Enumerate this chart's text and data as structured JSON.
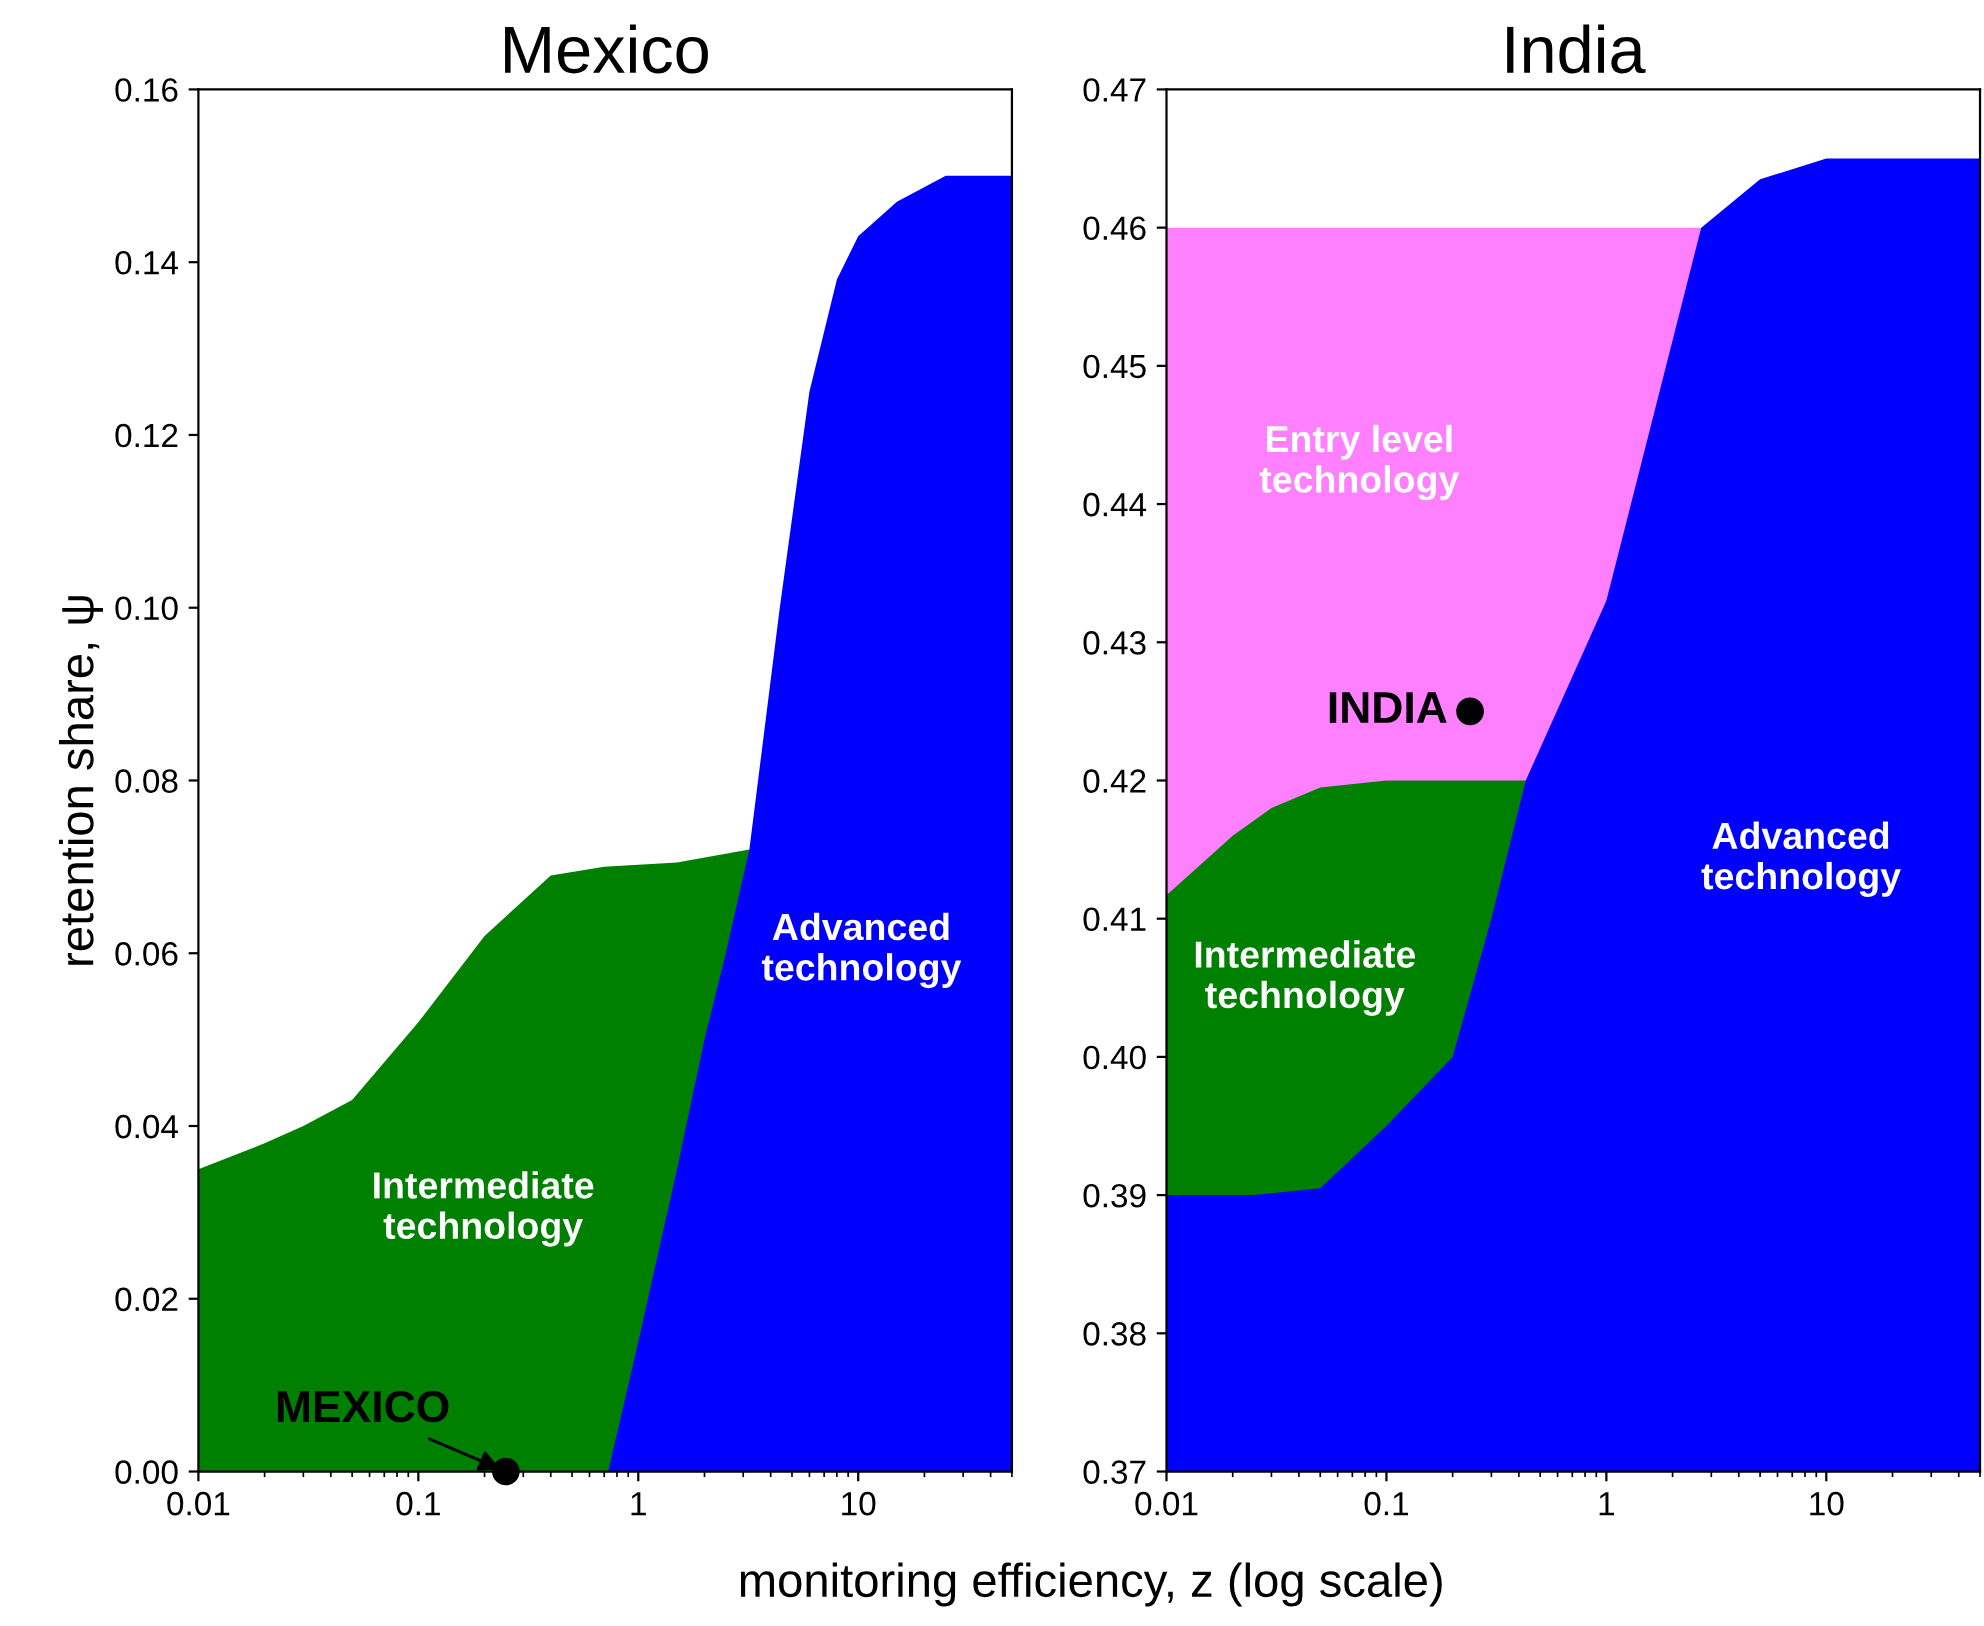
{
  "chart_data": [
    {
      "type": "area",
      "title": "Mexico",
      "xlabel": "monitoring efficiency, z (log scale)",
      "ylabel": "retention share, ψ",
      "log": "x",
      "xlim": [
        0.01,
        50
      ],
      "xticks": [
        0.01,
        0.1,
        1,
        10
      ],
      "ylim": [
        0,
        0.16
      ],
      "yticks": [
        {
          "value": 0,
          "label": "0.00"
        },
        {
          "value": 0.02,
          "label": "0.02"
        },
        {
          "value": 0.04,
          "label": "0.04"
        },
        {
          "value": 0.06,
          "label": "0.06"
        },
        {
          "value": 0.08,
          "label": "0.08"
        },
        {
          "value": 0.1,
          "label": "0.10"
        },
        {
          "value": 0.12,
          "label": "0.12"
        },
        {
          "value": 0.14,
          "label": "0.14"
        },
        {
          "value": 0.16,
          "label": "0.16"
        }
      ],
      "grid": false,
      "legend": false,
      "series": [
        {
          "color": "#008000",
          "x": [
            0.01,
            0.02,
            0.03,
            0.05,
            0.1,
            0.2,
            0.4,
            0.7,
            1.5,
            3.2
          ],
          "values": [
            0.035,
            0.038,
            0.04,
            0.043,
            0.052,
            0.062,
            0.069,
            0.07,
            0.0705,
            0.072
          ]
        },
        {
          "color": "#0000ff",
          "x": [
            0.73,
            1,
            1.5,
            2,
            2.5,
            3.2,
            4.4,
            6,
            8,
            10,
            15,
            25,
            50
          ],
          "values": [
            0,
            0.015,
            0.035,
            0.05,
            0.06,
            0.072,
            0.1,
            0.125,
            0.138,
            0.143,
            0.147,
            0.15,
            0.15
          ]
        },
        {
          "type": "scatter",
          "name": "MEXICO",
          "color": "#000000",
          "x": [
            0.25
          ],
          "values": [
            0
          ]
        }
      ],
      "annotations": [
        "Advanced\ntechnology",
        "Intermediate\ntechnology"
      ]
    },
    {
      "type": "area",
      "title": "India",
      "log": "x",
      "xlim": [
        0.01,
        50
      ],
      "xticks": [
        0.01,
        0.1,
        1,
        10
      ],
      "ylim": [
        0.37,
        0.47
      ],
      "yticks": [
        {
          "value": 0.37,
          "label": "0.37"
        },
        {
          "value": 0.38,
          "label": "0.38"
        },
        {
          "value": 0.39,
          "label": "0.39"
        },
        {
          "value": 0.4,
          "label": "0.40"
        },
        {
          "value": 0.41,
          "label": "0.41"
        },
        {
          "value": 0.42,
          "label": "0.42"
        },
        {
          "value": 0.43,
          "label": "0.43"
        },
        {
          "value": 0.44,
          "label": "0.44"
        },
        {
          "value": 0.45,
          "label": "0.45"
        },
        {
          "value": 0.46,
          "label": "0.46"
        },
        {
          "value": 0.47,
          "label": "0.47"
        }
      ],
      "grid": false,
      "legend": false,
      "series": [
        {
          "color": "#ff80ff",
          "x": [
            0.01,
            2.7
          ],
          "values": [
            0.46,
            0.46
          ]
        },
        {
          "color": "#008000",
          "x": [
            0.01,
            0.02,
            0.03,
            0.05,
            0.1,
            0.2,
            0.43
          ],
          "values": [
            0.4117,
            0.416,
            0.418,
            0.4195,
            0.42,
            0.42,
            0.42
          ]
        },
        {
          "color": "#0000ff",
          "x": [
            0.01,
            0.025,
            0.05,
            0.1,
            0.2,
            0.3,
            0.43,
            1,
            2.7,
            5,
            10,
            50
          ],
          "values": [
            0.39,
            0.39,
            0.3905,
            0.395,
            0.4,
            0.41,
            0.42,
            0.433,
            0.46,
            0.4635,
            0.465,
            0.465
          ]
        },
        {
          "type": "scatter",
          "name": "INDIA",
          "color": "#000000",
          "x": [
            0.24
          ],
          "values": [
            0.425
          ]
        }
      ],
      "annotations": [
        "Entry level\ntechnology",
        "Intermediate\ntechnology",
        "Advanced\ntechnology"
      ]
    }
  ]
}
